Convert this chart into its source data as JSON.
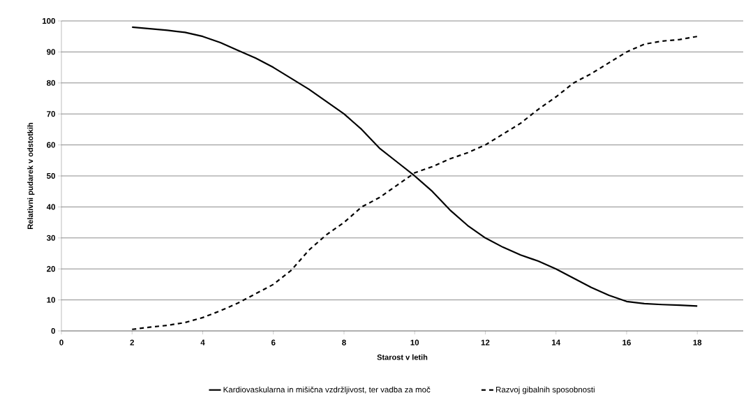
{
  "chart_data": {
    "type": "line",
    "xlabel": "Starost v letih",
    "ylabel": "Relativni pudarek v odstotkih",
    "x": [
      2,
      2.5,
      3,
      3.5,
      4,
      4.5,
      5,
      5.5,
      6,
      6.5,
      7,
      7.5,
      8,
      8.5,
      9,
      9.5,
      10,
      10.5,
      11,
      11.5,
      12,
      12.5,
      13,
      13.5,
      14,
      14.5,
      15,
      15.5,
      16,
      16.5,
      17,
      17.5,
      18
    ],
    "series": [
      {
        "name": "Kardiovaskularna in mišična vzdržljivost, ter vadba za moč",
        "color": "#000000",
        "line_style": "solid",
        "values": [
          98,
          97.5,
          97,
          96.3,
          95,
          93,
          90.5,
          88,
          85,
          81.5,
          78,
          74,
          70,
          65,
          59,
          54.5,
          50,
          45,
          39,
          34,
          30,
          27,
          24.5,
          22.5,
          20,
          17,
          14,
          11.5,
          9.5,
          8.8,
          8.5,
          8.3,
          8
        ]
      },
      {
        "name": "Razvoj gibalnih sposobnosti",
        "color": "#000000",
        "line_style": "dashed",
        "values": [
          0.5,
          1.2,
          1.8,
          2.7,
          4.3,
          6.5,
          9,
          12,
          15,
          19.5,
          26,
          31,
          35,
          40,
          43,
          47,
          51,
          53,
          55.5,
          57.5,
          60,
          63.5,
          67,
          71.5,
          75.5,
          80,
          83,
          86.5,
          90,
          92.5,
          93.5,
          94,
          95
        ]
      }
    ],
    "xlim": [
      0,
      19.3
    ],
    "xticks": [
      0,
      2,
      4,
      6,
      8,
      10,
      12,
      14,
      16,
      18
    ],
    "ylim": [
      0,
      100
    ],
    "yticks": [
      0,
      10,
      20,
      30,
      40,
      50,
      60,
      70,
      80,
      90,
      100
    ],
    "grid": "y",
    "legend": "bottom",
    "marker": "none"
  }
}
